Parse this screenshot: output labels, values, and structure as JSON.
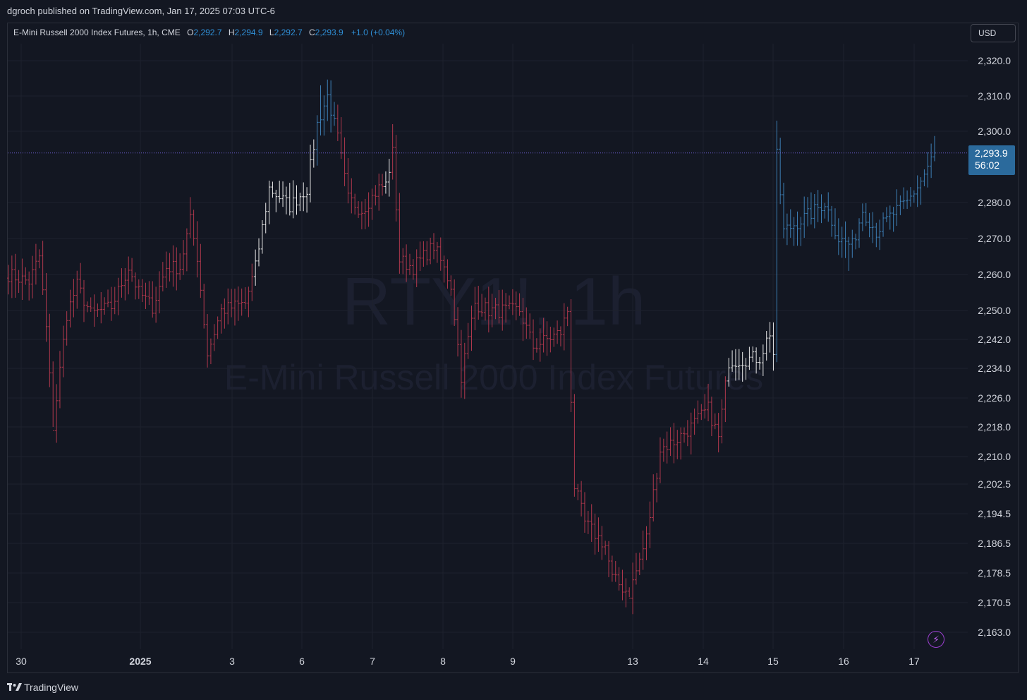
{
  "header": {
    "published": "dgroch published on TradingView.com, Jan 17, 2025 07:03 UTC-6"
  },
  "legend": {
    "symbol": "E-Mini Russell 2000 Index Futures, 1h, CME",
    "o_label": "O",
    "o_value": "2,292.7",
    "h_label": "H",
    "h_value": "2,294.9",
    "l_label": "L",
    "l_value": "2,292.7",
    "c_label": "C",
    "c_value": "2,293.9",
    "change": "+1.0 (+0.04%)"
  },
  "currency_button": "USD",
  "watermark": {
    "symbol": "RTY1!, 1h",
    "name": "E-Mini Russell 2000 Index Futures"
  },
  "current_price": {
    "value": "2,293.9",
    "countdown": "56:02"
  },
  "footer": {
    "brand": "TradingView"
  },
  "colors": {
    "background": "#131722",
    "grid": "#1e222d",
    "down": "#b0384d",
    "neutral": "#e8e8e8",
    "up": "#3d7fb5",
    "price_line": "#6c5fd0"
  },
  "icons": {
    "replay": "lightning-bolt-icon",
    "logo": "tradingview-logo-icon"
  },
  "chart_data": {
    "type": "ohlc",
    "interval": "1h",
    "y_axis": {
      "ticks": [
        {
          "value": 2320.0,
          "label": "2,320.0"
        },
        {
          "value": 2310.0,
          "label": "2,310.0"
        },
        {
          "value": 2300.0,
          "label": "2,300.0"
        },
        {
          "value": 2280.0,
          "label": "2,280.0"
        },
        {
          "value": 2270.0,
          "label": "2,270.0"
        },
        {
          "value": 2260.0,
          "label": "2,260.0"
        },
        {
          "value": 2250.0,
          "label": "2,250.0"
        },
        {
          "value": 2242.0,
          "label": "2,242.0"
        },
        {
          "value": 2234.0,
          "label": "2,234.0"
        },
        {
          "value": 2226.0,
          "label": "2,226.0"
        },
        {
          "value": 2218.0,
          "label": "2,218.0"
        },
        {
          "value": 2210.0,
          "label": "2,210.0"
        },
        {
          "value": 2202.5,
          "label": "2,202.5"
        },
        {
          "value": 2194.5,
          "label": "2,194.5"
        },
        {
          "value": 2186.5,
          "label": "2,186.5"
        },
        {
          "value": 2178.5,
          "label": "2,178.5"
        },
        {
          "value": 2170.5,
          "label": "2,170.5"
        },
        {
          "value": 2163.0,
          "label": "2,163.0"
        }
      ]
    },
    "x_axis": {
      "labels": [
        {
          "label": "30",
          "bold": false
        },
        {
          "label": "2025",
          "bold": true
        },
        {
          "label": "3",
          "bold": false
        },
        {
          "label": "6",
          "bold": false
        },
        {
          "label": "7",
          "bold": false
        },
        {
          "label": "8",
          "bold": false
        },
        {
          "label": "9",
          "bold": false
        },
        {
          "label": "13",
          "bold": false
        },
        {
          "label": "14",
          "bold": false
        },
        {
          "label": "15",
          "bold": false
        },
        {
          "label": "16",
          "bold": false
        },
        {
          "label": "17",
          "bold": false
        }
      ]
    },
    "last_price": 2293.9,
    "key_levels": {
      "start": 2260,
      "dec31_low": 2218,
      "dec31_high": 2265,
      "jan3_close": 2285,
      "jan6_high": 2313,
      "jan7_high": 2302,
      "jan10_low": 2172,
      "jan15_spike_high": 2303,
      "jan16_low": 2261
    },
    "path": [
      {
        "bar": 0,
        "price": 2260,
        "tone": "down"
      },
      {
        "bar": 6,
        "price": 2258,
        "tone": "down"
      },
      {
        "bar": 9,
        "price": 2265,
        "tone": "down"
      },
      {
        "bar": 11,
        "price": 2245,
        "tone": "down"
      },
      {
        "bar": 13,
        "price": 2218,
        "tone": "down"
      },
      {
        "bar": 17,
        "price": 2249,
        "tone": "down"
      },
      {
        "bar": 20,
        "price": 2257,
        "tone": "down"
      },
      {
        "bar": 24,
        "price": 2249,
        "tone": "down"
      },
      {
        "bar": 30,
        "price": 2251,
        "tone": "down"
      },
      {
        "bar": 35,
        "price": 2262,
        "tone": "down"
      },
      {
        "bar": 38,
        "price": 2255,
        "tone": "down"
      },
      {
        "bar": 42,
        "price": 2251,
        "tone": "down"
      },
      {
        "bar": 46,
        "price": 2262,
        "tone": "down"
      },
      {
        "bar": 50,
        "price": 2262,
        "tone": "down"
      },
      {
        "bar": 53,
        "price": 2275,
        "tone": "down"
      },
      {
        "bar": 55,
        "price": 2265,
        "tone": "down"
      },
      {
        "bar": 58,
        "price": 2238,
        "tone": "down"
      },
      {
        "bar": 62,
        "price": 2250,
        "tone": "down"
      },
      {
        "bar": 69,
        "price": 2252,
        "tone": "down"
      },
      {
        "bar": 72,
        "price": 2262,
        "tone": "neutral"
      },
      {
        "bar": 76,
        "price": 2284,
        "tone": "neutral"
      },
      {
        "bar": 82,
        "price": 2279,
        "tone": "neutral"
      },
      {
        "bar": 87,
        "price": 2284,
        "tone": "neutral"
      },
      {
        "bar": 90,
        "price": 2302,
        "tone": "up"
      },
      {
        "bar": 93,
        "price": 2310,
        "tone": "up"
      },
      {
        "bar": 96,
        "price": 2298,
        "tone": "down"
      },
      {
        "bar": 99,
        "price": 2281,
        "tone": "down"
      },
      {
        "bar": 103,
        "price": 2278,
        "tone": "down"
      },
      {
        "bar": 108,
        "price": 2284,
        "tone": "down"
      },
      {
        "bar": 110,
        "price": 2285,
        "tone": "neutral"
      },
      {
        "bar": 112,
        "price": 2294,
        "tone": "down"
      },
      {
        "bar": 114,
        "price": 2264,
        "tone": "down"
      },
      {
        "bar": 118,
        "price": 2262,
        "tone": "down"
      },
      {
        "bar": 124,
        "price": 2268,
        "tone": "down"
      },
      {
        "bar": 129,
        "price": 2257,
        "tone": "down"
      },
      {
        "bar": 132,
        "price": 2232,
        "tone": "down"
      },
      {
        "bar": 136,
        "price": 2252,
        "tone": "down"
      },
      {
        "bar": 140,
        "price": 2250,
        "tone": "down"
      },
      {
        "bar": 149,
        "price": 2250,
        "tone": "down"
      },
      {
        "bar": 153,
        "price": 2240,
        "tone": "down"
      },
      {
        "bar": 161,
        "price": 2244,
        "tone": "down"
      },
      {
        "bar": 163,
        "price": 2250,
        "tone": "down"
      },
      {
        "bar": 165,
        "price": 2202,
        "tone": "down"
      },
      {
        "bar": 168,
        "price": 2192,
        "tone": "down"
      },
      {
        "bar": 174,
        "price": 2186,
        "tone": "down"
      },
      {
        "bar": 176,
        "price": 2177,
        "tone": "down"
      },
      {
        "bar": 181,
        "price": 2173,
        "tone": "down"
      },
      {
        "bar": 186,
        "price": 2188,
        "tone": "down"
      },
      {
        "bar": 190,
        "price": 2212,
        "tone": "down"
      },
      {
        "bar": 194,
        "price": 2214,
        "tone": "down"
      },
      {
        "bar": 199,
        "price": 2218,
        "tone": "down"
      },
      {
        "bar": 204,
        "price": 2223,
        "tone": "down"
      },
      {
        "bar": 207,
        "price": 2215,
        "tone": "down"
      },
      {
        "bar": 210,
        "price": 2236,
        "tone": "neutral"
      },
      {
        "bar": 219,
        "price": 2237,
        "tone": "neutral"
      },
      {
        "bar": 222,
        "price": 2244,
        "tone": "neutral"
      },
      {
        "bar": 223,
        "price": 2238,
        "tone": "neutral"
      },
      {
        "bar": 224,
        "price": 2293,
        "tone": "up"
      },
      {
        "bar": 226,
        "price": 2272,
        "tone": "up"
      },
      {
        "bar": 234,
        "price": 2277,
        "tone": "up"
      },
      {
        "bar": 238,
        "price": 2280,
        "tone": "up"
      },
      {
        "bar": 242,
        "price": 2270,
        "tone": "up"
      },
      {
        "bar": 246,
        "price": 2268,
        "tone": "up"
      },
      {
        "bar": 249,
        "price": 2278,
        "tone": "up"
      },
      {
        "bar": 253,
        "price": 2272,
        "tone": "up"
      },
      {
        "bar": 258,
        "price": 2277,
        "tone": "up"
      },
      {
        "bar": 262,
        "price": 2280,
        "tone": "up"
      },
      {
        "bar": 266,
        "price": 2286,
        "tone": "up"
      },
      {
        "bar": 270,
        "price": 2293.9,
        "tone": "up"
      }
    ],
    "forced_wicks": [
      {
        "bar": 13,
        "low": 2218
      },
      {
        "bar": 91,
        "high": 2313
      },
      {
        "bar": 112,
        "high": 2302
      },
      {
        "bar": 181,
        "low": 2172
      },
      {
        "bar": 224,
        "high": 2303
      },
      {
        "bar": 245,
        "low": 2261
      }
    ]
  }
}
